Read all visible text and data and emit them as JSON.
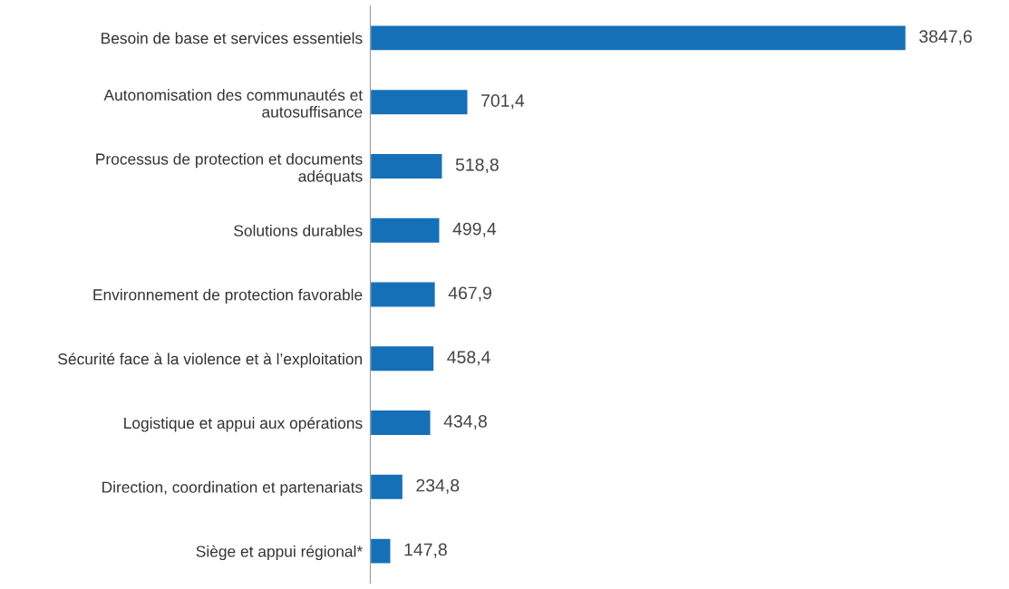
{
  "chart_data": {
    "type": "bar",
    "orientation": "horizontal",
    "categories": [
      "Besoin de base et services essentiels",
      "Autonomisation des communautés et\nautosuffisance",
      "Processus de protection et documents\nadéquats",
      "Solutions durables",
      "Environnement de protection favorable",
      "Sécurité face à la violence et à l’exploitation",
      "Logistique et appui aux opérations",
      "Direction, coordination et partenariats",
      "Siège et appui régional*"
    ],
    "values": [
      3847.6,
      701.4,
      518.8,
      499.4,
      467.9,
      458.4,
      434.8,
      234.8,
      147.8
    ],
    "value_labels": [
      "3847,6",
      "701,4",
      "518,8",
      "499,4",
      "467,9",
      "458,4",
      "434,8",
      "234,8",
      "147,8"
    ],
    "color": "#1670b8",
    "grid": false,
    "legend": false
  }
}
